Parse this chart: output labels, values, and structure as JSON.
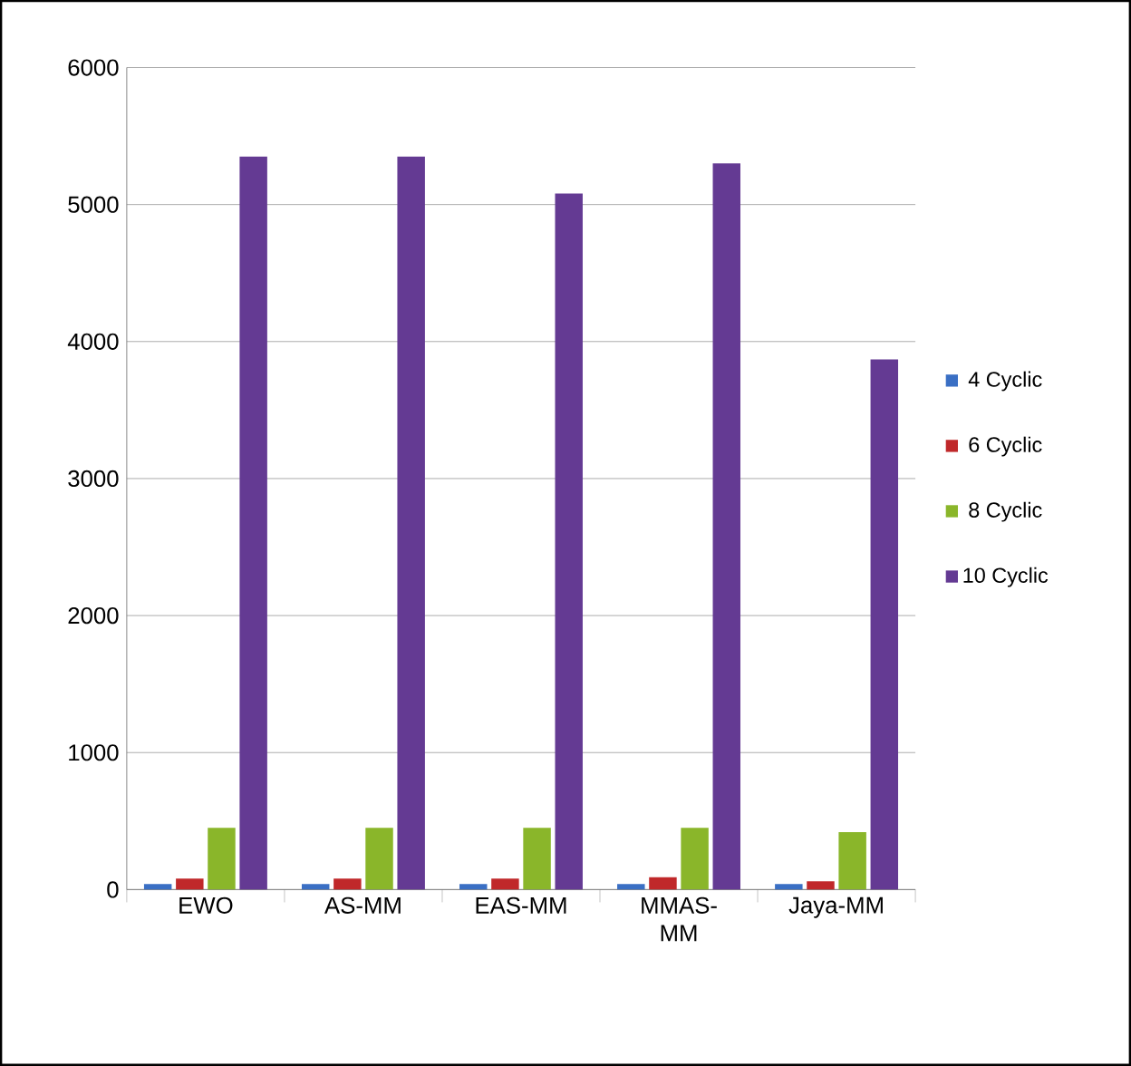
{
  "chart_data": {
    "type": "bar",
    "categories": [
      "EWO",
      "AS-MM",
      "EAS-MM",
      "MMAS-\nMM",
      "Jaya-MM"
    ],
    "series": [
      {
        "name": "4 Cyclic",
        "color": "#3a6fc4",
        "values": [
          40,
          40,
          40,
          40,
          40
        ]
      },
      {
        "name": "6 Cyclic",
        "color": "#c0282a",
        "values": [
          80,
          80,
          80,
          90,
          60
        ]
      },
      {
        "name": "8 Cyclic",
        "color": "#8ab62a",
        "values": [
          450,
          450,
          450,
          450,
          420
        ]
      },
      {
        "name": "10 Cyclic",
        "color": "#643a93",
        "values": [
          5350,
          5350,
          5080,
          5300,
          3870
        ]
      }
    ],
    "ylim": [
      0,
      6000
    ],
    "yticks": [
      0,
      1000,
      2000,
      3000,
      4000,
      5000,
      6000
    ],
    "grid": "y",
    "legend": "right"
  }
}
